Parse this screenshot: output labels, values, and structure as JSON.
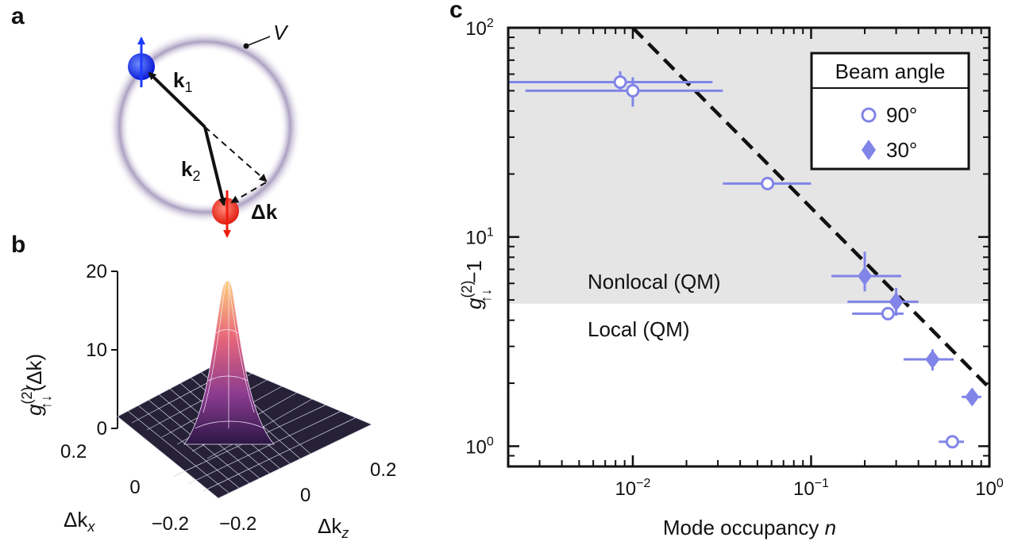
{
  "panels": {
    "a": {
      "letter": "a",
      "ring_label": "V",
      "k1_label": "k",
      "k1_sub": "1",
      "k2_label": "k",
      "k2_sub": "2",
      "dk_label": "Δk"
    },
    "b": {
      "letter": "b",
      "zlabel": "g",
      "zlabel_sup": "(2)",
      "zlabel_sub": "↑↓",
      "zlabel_tail": "(Δk)",
      "z_ticks": [
        "20",
        "10",
        "0"
      ],
      "x_ticks": [
        "0.2",
        "0",
        "−0.2"
      ],
      "z2_ticks": [
        "−0.2",
        "0",
        "0.2"
      ],
      "xlabel": "Δk",
      "xlabel_sub": "x",
      "ylabel": "Δk",
      "ylabel_sub": "z"
    },
    "c": {
      "letter": "c"
    }
  },
  "chart_data": {
    "type": "scatter",
    "xscale": "log",
    "yscale": "log",
    "xlim": [
      0.002,
      1.0
    ],
    "ylim": [
      0.8,
      100
    ],
    "xlabel": "Mode occupancy",
    "xlabel_var": "n",
    "ylabel": "g",
    "ylabel_sup": "(2)",
    "ylabel_sub": "↑↓",
    "ylabel_tail": "−1",
    "x_ticks": [
      {
        "value": 0.01,
        "base": "10",
        "exp": "−2"
      },
      {
        "value": 0.1,
        "base": "10",
        "exp": "−1"
      },
      {
        "value": 1.0,
        "base": "10",
        "exp": "0"
      }
    ],
    "y_ticks": [
      {
        "value": 1,
        "base": "10",
        "exp": "0"
      },
      {
        "value": 10,
        "base": "10",
        "exp": "1"
      },
      {
        "value": 100,
        "base": "10",
        "exp": "2"
      }
    ],
    "threshold": 4.8,
    "region_upper_label": "Nonlocal (QM)",
    "region_lower_label": "Local (QM)",
    "shade_color": "#e5e5e5",
    "series_color": "#8184e8",
    "legend_title": "Beam angle",
    "series": [
      {
        "name": "90°",
        "marker": "circle-open",
        "points": [
          {
            "x": 0.0085,
            "y": 55,
            "xlo": 0.002,
            "xhi": 0.028,
            "ylo": 50,
            "yhi": 62
          },
          {
            "x": 0.01,
            "y": 50,
            "xlo": 0.0025,
            "xhi": 0.032,
            "ylo": 42,
            "yhi": 58
          },
          {
            "x": 0.057,
            "y": 18,
            "xlo": 0.032,
            "xhi": 0.1,
            "ylo": 17,
            "yhi": 19
          },
          {
            "x": 0.27,
            "y": 4.3,
            "xlo": 0.17,
            "xhi": 0.33,
            "ylo": 4.0,
            "yhi": 4.6
          },
          {
            "x": 0.62,
            "y": 1.05,
            "xlo": 0.52,
            "xhi": 0.72,
            "ylo": 1.0,
            "yhi": 1.1
          }
        ]
      },
      {
        "name": "30°",
        "marker": "diamond-filled",
        "points": [
          {
            "x": 0.2,
            "y": 6.5,
            "xlo": 0.13,
            "xhi": 0.32,
            "ylo": 5.5,
            "yhi": 8.5
          },
          {
            "x": 0.3,
            "y": 4.9,
            "xlo": 0.16,
            "xhi": 0.4,
            "ylo": 4.2,
            "yhi": 5.7
          },
          {
            "x": 0.48,
            "y": 2.6,
            "xlo": 0.33,
            "xhi": 0.63,
            "ylo": 2.3,
            "yhi": 2.9
          },
          {
            "x": 0.8,
            "y": 1.72,
            "xlo": 0.7,
            "xhi": 0.9,
            "ylo": 1.63,
            "yhi": 1.82
          }
        ]
      }
    ],
    "fit_line": {
      "x": [
        0.01,
        1.0
      ],
      "y": [
        100,
        1.9
      ]
    }
  }
}
